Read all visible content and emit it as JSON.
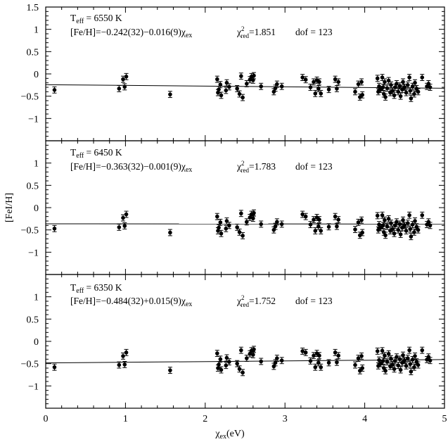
{
  "figure": {
    "ylabel": "[FeI/H]",
    "xlabel_main": "χ",
    "xlabel_sub": "ex",
    "xlabel_unit": "(eV)"
  },
  "chart_data": [
    {
      "type": "scatter",
      "panel": "top",
      "teff_label": "T",
      "teff_sub": "eff",
      "teff_value": " = 6550  K",
      "fit_text": "[Fe/H]=−0.242(32)−0.016(9)χ",
      "fit_sub": "ex",
      "chi_symbol": "χ",
      "chi_sup": "2",
      "chi_sub": "red",
      "chi_value": "=1.851",
      "dof_text": "dof  =  123",
      "xlim": [
        0,
        5
      ],
      "ylim": [
        -1.5,
        1.5
      ],
      "xticks": [
        0,
        1,
        2,
        3,
        4,
        5
      ],
      "yticks": [
        -1,
        -0.5,
        0,
        0.5,
        1,
        1.5
      ],
      "ytick_labels": [
        "−1",
        "−0.5",
        "0",
        "0.5",
        "1",
        "1.5"
      ],
      "fit": {
        "intercept": -0.242,
        "slope": -0.016
      },
      "points": [
        [
          0.11,
          -0.36
        ],
        [
          0.92,
          -0.33
        ],
        [
          0.97,
          -0.12
        ],
        [
          0.99,
          -0.29
        ],
        [
          1.01,
          -0.06
        ],
        [
          1.56,
          -0.46
        ],
        [
          2.15,
          -0.12
        ],
        [
          2.16,
          -0.42
        ],
        [
          2.17,
          -0.35
        ],
        [
          2.19,
          -0.24
        ],
        [
          2.2,
          -0.48
        ],
        [
          2.26,
          -0.37
        ],
        [
          2.27,
          -0.2
        ],
        [
          2.3,
          -0.29
        ],
        [
          2.4,
          -0.33
        ],
        [
          2.43,
          -0.45
        ],
        [
          2.45,
          -0.05
        ],
        [
          2.47,
          -0.53
        ],
        [
          2.52,
          -0.22
        ],
        [
          2.56,
          -0.13
        ],
        [
          2.58,
          -0.06
        ],
        [
          2.6,
          -0.14
        ],
        [
          2.61,
          -0.04
        ],
        [
          2.7,
          -0.28
        ],
        [
          2.86,
          -0.4
        ],
        [
          2.88,
          -0.32
        ],
        [
          2.9,
          -0.23
        ],
        [
          2.96,
          -0.28
        ],
        [
          3.22,
          -0.08
        ],
        [
          3.26,
          -0.13
        ],
        [
          3.32,
          -0.3
        ],
        [
          3.36,
          -0.18
        ],
        [
          3.38,
          -0.44
        ],
        [
          3.4,
          -0.14
        ],
        [
          3.42,
          -0.33
        ],
        [
          3.43,
          -0.18
        ],
        [
          3.45,
          -0.44
        ],
        [
          3.55,
          -0.35
        ],
        [
          3.63,
          -0.12
        ],
        [
          3.65,
          -0.33
        ],
        [
          3.67,
          -0.18
        ],
        [
          3.88,
          -0.4
        ],
        [
          3.92,
          -0.23
        ],
        [
          3.94,
          -0.52
        ],
        [
          3.96,
          -0.18
        ],
        [
          3.97,
          -0.47
        ],
        [
          4.16,
          -0.1
        ],
        [
          4.17,
          -0.4
        ],
        [
          4.18,
          -0.28
        ],
        [
          4.2,
          -0.35
        ],
        [
          4.22,
          -0.08
        ],
        [
          4.23,
          -0.3
        ],
        [
          4.24,
          -0.45
        ],
        [
          4.25,
          -0.18
        ],
        [
          4.26,
          -0.52
        ],
        [
          4.28,
          -0.32
        ],
        [
          4.3,
          -0.15
        ],
        [
          4.32,
          -0.42
        ],
        [
          4.33,
          -0.25
        ],
        [
          4.35,
          -0.38
        ],
        [
          4.37,
          -0.48
        ],
        [
          4.38,
          -0.3
        ],
        [
          4.4,
          -0.22
        ],
        [
          4.42,
          -0.4
        ],
        [
          4.44,
          -0.27
        ],
        [
          4.45,
          -0.5
        ],
        [
          4.47,
          -0.35
        ],
        [
          4.48,
          -0.18
        ],
        [
          4.5,
          -0.3
        ],
        [
          4.52,
          -0.42
        ],
        [
          4.54,
          -0.25
        ],
        [
          4.56,
          -0.08
        ],
        [
          4.57,
          -0.38
        ],
        [
          4.58,
          -0.55
        ],
        [
          4.6,
          -0.28
        ],
        [
          4.62,
          -0.45
        ],
        [
          4.63,
          -0.2
        ],
        [
          4.65,
          -0.33
        ],
        [
          4.67,
          -0.4
        ],
        [
          4.72,
          -0.08
        ],
        [
          4.78,
          -0.28
        ],
        [
          4.8,
          -0.22
        ],
        [
          4.82,
          -0.3
        ]
      ]
    },
    {
      "type": "scatter",
      "panel": "middle",
      "teff_label": "T",
      "teff_sub": "eff",
      "teff_value": " = 6450  K",
      "fit_text": "[Fe/H]=−0.363(32)−0.001(9)χ",
      "fit_sub": "ex",
      "chi_symbol": "χ",
      "chi_sup": "2",
      "chi_sub": "red",
      "chi_value": "=1.783",
      "dof_text": "dof  =  123",
      "xlim": [
        0,
        5
      ],
      "ylim": [
        -1.5,
        1.5
      ],
      "xticks": [
        0,
        1,
        2,
        3,
        4,
        5
      ],
      "yticks": [
        -1,
        -0.5,
        0,
        0.5,
        1
      ],
      "ytick_labels": [
        "−1",
        "−0.5",
        "0",
        "0.5",
        "1"
      ],
      "fit": {
        "intercept": -0.363,
        "slope": -0.001
      },
      "points": [
        [
          0.11,
          -0.47
        ],
        [
          0.92,
          -0.44
        ],
        [
          0.97,
          -0.23
        ],
        [
          0.99,
          -0.41
        ],
        [
          1.01,
          -0.15
        ],
        [
          1.56,
          -0.56
        ],
        [
          2.15,
          -0.2
        ],
        [
          2.16,
          -0.52
        ],
        [
          2.17,
          -0.45
        ],
        [
          2.19,
          -0.33
        ],
        [
          2.2,
          -0.58
        ],
        [
          2.26,
          -0.47
        ],
        [
          2.27,
          -0.3
        ],
        [
          2.3,
          -0.4
        ],
        [
          2.4,
          -0.44
        ],
        [
          2.43,
          -0.55
        ],
        [
          2.45,
          -0.13
        ],
        [
          2.47,
          -0.63
        ],
        [
          2.52,
          -0.32
        ],
        [
          2.56,
          -0.22
        ],
        [
          2.58,
          -0.15
        ],
        [
          2.6,
          -0.24
        ],
        [
          2.61,
          -0.12
        ],
        [
          2.7,
          -0.37
        ],
        [
          2.86,
          -0.5
        ],
        [
          2.88,
          -0.42
        ],
        [
          2.9,
          -0.32
        ],
        [
          2.96,
          -0.37
        ],
        [
          3.22,
          -0.15
        ],
        [
          3.26,
          -0.2
        ],
        [
          3.32,
          -0.38
        ],
        [
          3.36,
          -0.27
        ],
        [
          3.38,
          -0.52
        ],
        [
          3.4,
          -0.22
        ],
        [
          3.42,
          -0.42
        ],
        [
          3.43,
          -0.27
        ],
        [
          3.45,
          -0.52
        ],
        [
          3.55,
          -0.43
        ],
        [
          3.63,
          -0.2
        ],
        [
          3.65,
          -0.42
        ],
        [
          3.67,
          -0.27
        ],
        [
          3.88,
          -0.49
        ],
        [
          3.92,
          -0.33
        ],
        [
          3.94,
          -0.62
        ],
        [
          3.96,
          -0.28
        ],
        [
          3.97,
          -0.56
        ],
        [
          4.16,
          -0.18
        ],
        [
          4.17,
          -0.5
        ],
        [
          4.18,
          -0.38
        ],
        [
          4.2,
          -0.45
        ],
        [
          4.22,
          -0.17
        ],
        [
          4.23,
          -0.4
        ],
        [
          4.24,
          -0.55
        ],
        [
          4.25,
          -0.28
        ],
        [
          4.26,
          -0.62
        ],
        [
          4.28,
          -0.42
        ],
        [
          4.3,
          -0.25
        ],
        [
          4.32,
          -0.52
        ],
        [
          4.33,
          -0.35
        ],
        [
          4.35,
          -0.48
        ],
        [
          4.37,
          -0.58
        ],
        [
          4.38,
          -0.4
        ],
        [
          4.4,
          -0.32
        ],
        [
          4.42,
          -0.5
        ],
        [
          4.44,
          -0.37
        ],
        [
          4.45,
          -0.6
        ],
        [
          4.47,
          -0.45
        ],
        [
          4.48,
          -0.28
        ],
        [
          4.5,
          -0.4
        ],
        [
          4.52,
          -0.52
        ],
        [
          4.54,
          -0.35
        ],
        [
          4.56,
          -0.17
        ],
        [
          4.57,
          -0.48
        ],
        [
          4.58,
          -0.65
        ],
        [
          4.6,
          -0.38
        ],
        [
          4.62,
          -0.55
        ],
        [
          4.63,
          -0.3
        ],
        [
          4.65,
          -0.43
        ],
        [
          4.67,
          -0.5
        ],
        [
          4.72,
          -0.17
        ],
        [
          4.78,
          -0.38
        ],
        [
          4.8,
          -0.32
        ],
        [
          4.82,
          -0.4
        ]
      ]
    },
    {
      "type": "scatter",
      "panel": "bottom",
      "teff_label": "T",
      "teff_sub": "eff",
      "teff_value": " = 6350  K",
      "fit_text": "[Fe/H]=−0.484(32)+0.015(9)χ",
      "fit_sub": "ex",
      "chi_symbol": "χ",
      "chi_sup": "2",
      "chi_sub": "red",
      "chi_value": "=1.752",
      "dof_text": "dof  =  123",
      "xlim": [
        0,
        5
      ],
      "ylim": [
        -1.5,
        1.5
      ],
      "xticks": [
        0,
        1,
        2,
        3,
        4,
        5
      ],
      "yticks": [
        -1,
        -0.5,
        0,
        0.5,
        1
      ],
      "ytick_labels": [
        "−1",
        "−0.5",
        "0",
        "0.5",
        "1"
      ],
      "xtick_labels": [
        "0",
        "1",
        "2",
        "3",
        "4",
        "5"
      ],
      "fit": {
        "intercept": -0.484,
        "slope": 0.015
      },
      "points": [
        [
          0.11,
          -0.58
        ],
        [
          0.92,
          -0.53
        ],
        [
          0.97,
          -0.33
        ],
        [
          0.99,
          -0.52
        ],
        [
          1.01,
          -0.25
        ],
        [
          1.56,
          -0.65
        ],
        [
          2.15,
          -0.27
        ],
        [
          2.16,
          -0.6
        ],
        [
          2.17,
          -0.52
        ],
        [
          2.19,
          -0.4
        ],
        [
          2.2,
          -0.64
        ],
        [
          2.26,
          -0.54
        ],
        [
          2.27,
          -0.37
        ],
        [
          2.3,
          -0.46
        ],
        [
          2.4,
          -0.5
        ],
        [
          2.43,
          -0.62
        ],
        [
          2.45,
          -0.2
        ],
        [
          2.47,
          -0.7
        ],
        [
          2.52,
          -0.38
        ],
        [
          2.56,
          -0.28
        ],
        [
          2.58,
          -0.21
        ],
        [
          2.6,
          -0.3
        ],
        [
          2.61,
          -0.18
        ],
        [
          2.7,
          -0.45
        ],
        [
          2.86,
          -0.56
        ],
        [
          2.88,
          -0.48
        ],
        [
          2.9,
          -0.38
        ],
        [
          2.96,
          -0.43
        ],
        [
          3.22,
          -0.22
        ],
        [
          3.26,
          -0.25
        ],
        [
          3.32,
          -0.44
        ],
        [
          3.36,
          -0.32
        ],
        [
          3.38,
          -0.58
        ],
        [
          3.4,
          -0.27
        ],
        [
          3.42,
          -0.48
        ],
        [
          3.43,
          -0.32
        ],
        [
          3.45,
          -0.58
        ],
        [
          3.55,
          -0.48
        ],
        [
          3.63,
          -0.25
        ],
        [
          3.65,
          -0.47
        ],
        [
          3.67,
          -0.32
        ],
        [
          3.88,
          -0.53
        ],
        [
          3.92,
          -0.38
        ],
        [
          3.94,
          -0.66
        ],
        [
          3.96,
          -0.33
        ],
        [
          3.97,
          -0.6
        ],
        [
          4.16,
          -0.22
        ],
        [
          4.17,
          -0.55
        ],
        [
          4.18,
          -0.42
        ],
        [
          4.2,
          -0.5
        ],
        [
          4.22,
          -0.21
        ],
        [
          4.23,
          -0.44
        ],
        [
          4.24,
          -0.6
        ],
        [
          4.25,
          -0.32
        ],
        [
          4.26,
          -0.66
        ],
        [
          4.28,
          -0.46
        ],
        [
          4.3,
          -0.28
        ],
        [
          4.32,
          -0.56
        ],
        [
          4.33,
          -0.39
        ],
        [
          4.35,
          -0.52
        ],
        [
          4.37,
          -0.62
        ],
        [
          4.38,
          -0.44
        ],
        [
          4.4,
          -0.35
        ],
        [
          4.42,
          -0.54
        ],
        [
          4.44,
          -0.4
        ],
        [
          4.45,
          -0.64
        ],
        [
          4.47,
          -0.48
        ],
        [
          4.48,
          -0.31
        ],
        [
          4.5,
          -0.43
        ],
        [
          4.52,
          -0.55
        ],
        [
          4.54,
          -0.38
        ],
        [
          4.56,
          -0.2
        ],
        [
          4.57,
          -0.51
        ],
        [
          4.58,
          -0.68
        ],
        [
          4.6,
          -0.41
        ],
        [
          4.62,
          -0.58
        ],
        [
          4.63,
          -0.33
        ],
        [
          4.65,
          -0.46
        ],
        [
          4.67,
          -0.53
        ],
        [
          4.72,
          -0.2
        ],
        [
          4.78,
          -0.41
        ],
        [
          4.8,
          -0.35
        ],
        [
          4.82,
          -0.43
        ]
      ]
    }
  ]
}
